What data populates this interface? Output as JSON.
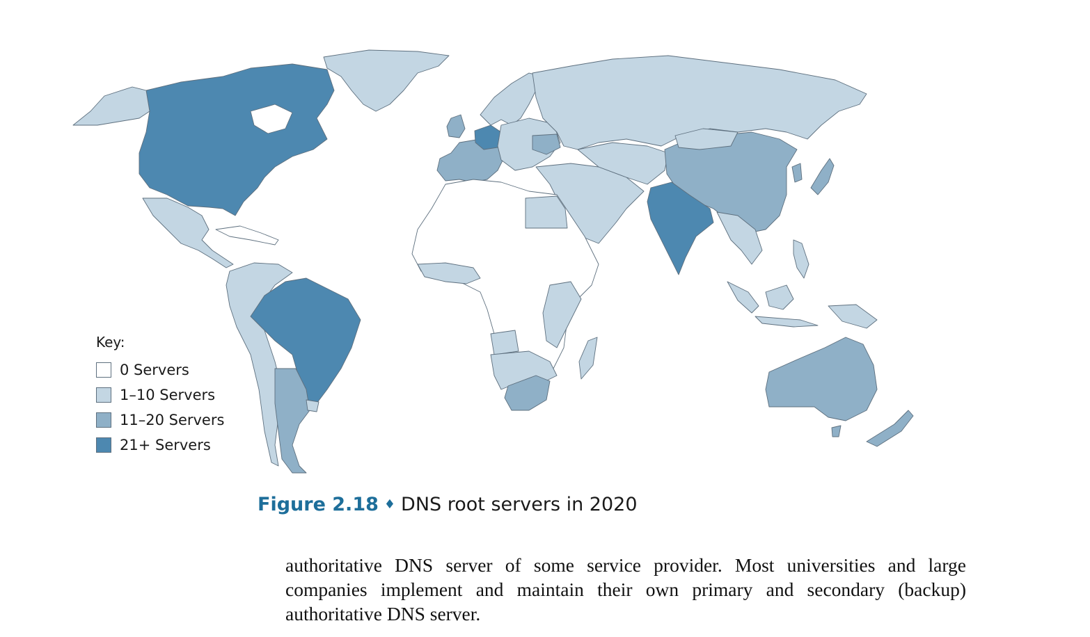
{
  "legend": {
    "title": "Key:",
    "items": [
      {
        "label": "0 Servers",
        "color": "#ffffff"
      },
      {
        "label": "1–10 Servers",
        "color": "#c3d6e3"
      },
      {
        "label": "11–20 Servers",
        "color": "#8fb0c7"
      },
      {
        "label": "21+ Servers",
        "color": "#4d88b0"
      }
    ]
  },
  "caption": {
    "figure": "Figure 2.18",
    "separator": "♦",
    "text": "DNS root servers in 2020"
  },
  "body_text": "authoritative DNS server of some service provider. Most universities and large companies implement and maintain their own primary and secondary (backup) authoritative DNS server.",
  "tiers": {
    "0": "0 Servers",
    "1": "1–10 Servers",
    "2": "11–20 Servers",
    "3": "21+ Servers"
  }
}
